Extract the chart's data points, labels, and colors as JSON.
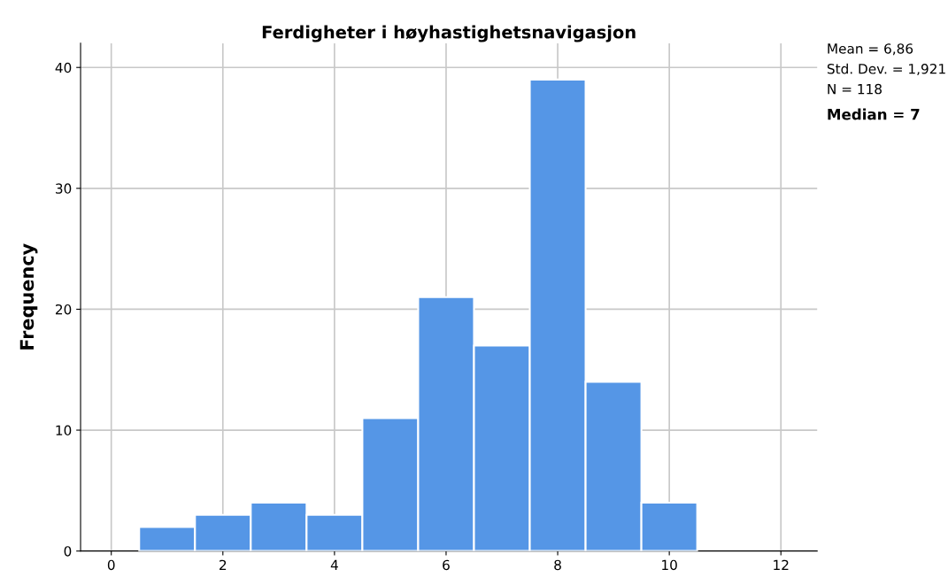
{
  "chart_data": {
    "type": "histogram",
    "title": "Ferdigheter i høyhastighetsnavigasjon",
    "ylabel": "Frequency",
    "bins": [
      0.5,
      1.5,
      2.5,
      3.5,
      4.5,
      5.5,
      6.5,
      7.5,
      8.5,
      9.5,
      10.5
    ],
    "values": [
      2,
      3,
      4,
      3,
      11,
      21,
      17,
      39,
      14,
      4
    ],
    "color": "#5596e6",
    "xlim": [
      -0.55,
      12.65
    ],
    "xticks": [
      0,
      2,
      4,
      6,
      8,
      10,
      12
    ],
    "ylim": [
      0,
      42
    ],
    "yticks": [
      0,
      10,
      20,
      30,
      40
    ],
    "grid": true,
    "annotations": [
      "Mean = 6,86",
      "Std. Dev. = 1,921",
      "N = 118",
      "Median = 7"
    ]
  }
}
